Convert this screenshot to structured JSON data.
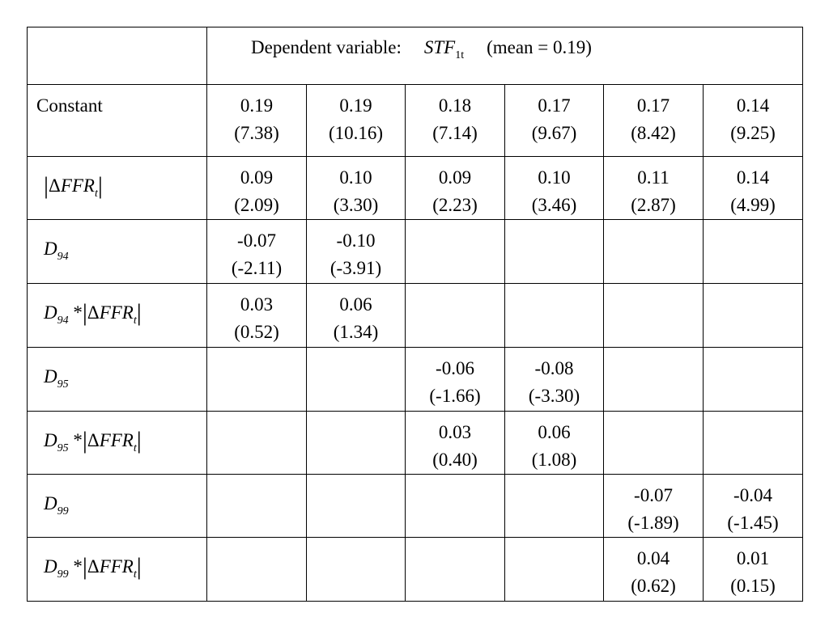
{
  "header": {
    "prefix": "Dependent variable:",
    "variable": "STF",
    "variable_sub": "1t",
    "suffix": "(mean = 0.19)"
  },
  "rows": [
    {
      "label": [
        {
          "text": "Constant",
          "style": "normal"
        }
      ],
      "cells": [
        [
          "0.19",
          "(7.38)"
        ],
        [
          "0.19",
          "(10.16)"
        ],
        [
          "0.18",
          "(7.14)"
        ],
        [
          "0.17",
          "(9.67)"
        ],
        [
          "0.17",
          "(8.42)"
        ],
        [
          "0.14",
          "(9.25)"
        ]
      ]
    },
    {
      "label": [
        {
          "text": "|",
          "style": "bar"
        },
        {
          "text": "Δ",
          "style": "normal"
        },
        {
          "text": "FFR",
          "style": "italic"
        },
        {
          "text": "t",
          "style": "sub"
        },
        {
          "text": "|",
          "style": "bar"
        }
      ],
      "cells": [
        [
          "0.09",
          "(2.09)"
        ],
        [
          "0.10",
          "(3.30)"
        ],
        [
          "0.09",
          "(2.23)"
        ],
        [
          "0.10",
          "(3.46)"
        ],
        [
          "0.11",
          "(2.87)"
        ],
        [
          "0.14",
          "(4.99)"
        ]
      ]
    },
    {
      "label": [
        {
          "text": "D",
          "style": "italic"
        },
        {
          "text": "94",
          "style": "sub"
        }
      ],
      "cells": [
        [
          "-0.07",
          "(-2.11)"
        ],
        [
          "-0.10",
          "(-3.91)"
        ],
        null,
        null,
        null,
        null
      ]
    },
    {
      "label": [
        {
          "text": "D",
          "style": "italic"
        },
        {
          "text": "94",
          "style": "sub"
        },
        {
          "text": " *",
          "style": "normal"
        },
        {
          "text": "|",
          "style": "bar"
        },
        {
          "text": "Δ",
          "style": "normal"
        },
        {
          "text": "FFR",
          "style": "italic"
        },
        {
          "text": "t",
          "style": "sub"
        },
        {
          "text": "|",
          "style": "bar"
        }
      ],
      "cells": [
        [
          "0.03",
          "(0.52)"
        ],
        [
          "0.06",
          "(1.34)"
        ],
        null,
        null,
        null,
        null
      ]
    },
    {
      "label": [
        {
          "text": "D",
          "style": "italic"
        },
        {
          "text": "95",
          "style": "sub"
        }
      ],
      "cells": [
        null,
        null,
        [
          "-0.06",
          "(-1.66)"
        ],
        [
          "-0.08",
          "(-3.30)"
        ],
        null,
        null
      ]
    },
    {
      "label": [
        {
          "text": "D",
          "style": "italic"
        },
        {
          "text": "95",
          "style": "sub"
        },
        {
          "text": " *",
          "style": "normal"
        },
        {
          "text": "|",
          "style": "bar"
        },
        {
          "text": "Δ",
          "style": "normal"
        },
        {
          "text": "FFR",
          "style": "italic"
        },
        {
          "text": "t",
          "style": "sub"
        },
        {
          "text": "|",
          "style": "bar"
        }
      ],
      "cells": [
        null,
        null,
        [
          "0.03",
          "(0.40)"
        ],
        [
          "0.06",
          "(1.08)"
        ],
        null,
        null
      ]
    },
    {
      "label": [
        {
          "text": "D",
          "style": "italic"
        },
        {
          "text": "99",
          "style": "sub"
        }
      ],
      "cells": [
        null,
        null,
        null,
        null,
        [
          "-0.07",
          "(-1.89)"
        ],
        [
          "-0.04",
          "(-1.45)"
        ]
      ]
    },
    {
      "label": [
        {
          "text": "D",
          "style": "italic"
        },
        {
          "text": "99",
          "style": "sub"
        },
        {
          "text": " *",
          "style": "normal"
        },
        {
          "text": "|",
          "style": "bar"
        },
        {
          "text": "Δ",
          "style": "normal"
        },
        {
          "text": "FFR",
          "style": "italic"
        },
        {
          "text": "t",
          "style": "sub"
        },
        {
          "text": "|",
          "style": "bar"
        }
      ],
      "cells": [
        null,
        null,
        null,
        null,
        [
          "0.04",
          "(0.62)"
        ],
        [
          "0.01",
          "(0.15)"
        ]
      ]
    }
  ]
}
